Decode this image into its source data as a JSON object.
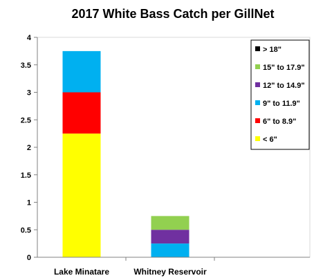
{
  "chart_data": {
    "type": "bar",
    "stacked": true,
    "title": "2017 White Bass Catch per GillNet",
    "xlabel": "",
    "ylabel": "",
    "categories": [
      "Lake Minatare",
      "Whitney Reservoir"
    ],
    "ylim": [
      0,
      4
    ],
    "yticks": [
      "0",
      "0.5",
      "1",
      "1.5",
      "2",
      "2.5",
      "3",
      "3.5",
      "4"
    ],
    "grid": false,
    "legend_position": "top-right",
    "series": [
      {
        "name": "< 6\"",
        "color": "#ffff00",
        "values": [
          2.25,
          0
        ]
      },
      {
        "name": "6\" to 8.9\"",
        "color": "#ff0000",
        "values": [
          0.75,
          0
        ]
      },
      {
        "name": "9\" to 11.9\"",
        "color": "#00b0f0",
        "values": [
          0.75,
          0.25
        ]
      },
      {
        "name": "12\" to 14.9\"",
        "color": "#7030a0",
        "values": [
          0,
          0.25
        ]
      },
      {
        "name": "15\" to 17.9\"",
        "color": "#92d050",
        "values": [
          0,
          0.25
        ]
      },
      {
        "name": "> 18\"",
        "color": "#000000",
        "values": [
          0,
          0
        ]
      }
    ]
  }
}
